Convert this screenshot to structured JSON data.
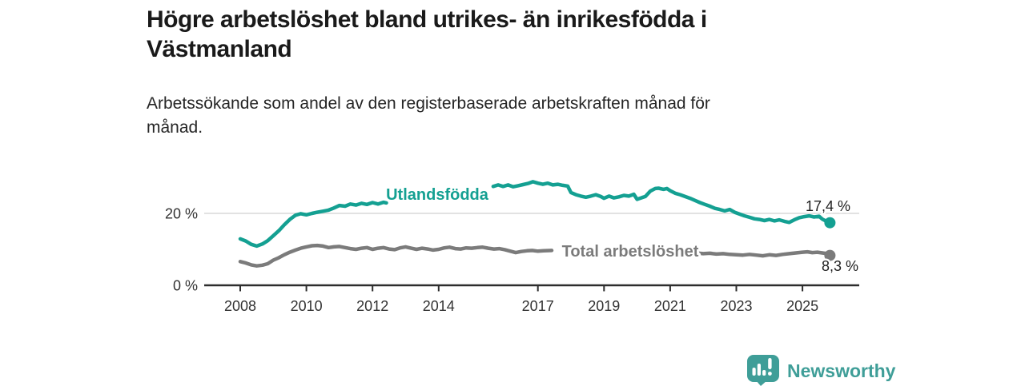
{
  "header": {
    "title_line1": "Högre arbetslöshet bland utrikes- än inrikesfödda i",
    "title_line2": "Västmanland",
    "subtitle_line1": "Arbetssökande som andel av den registerbaserade arbetskraften månad för",
    "subtitle_line2": "månad."
  },
  "chart_data": {
    "type": "line",
    "title": "Högre arbetslöshet bland utrikes- än inrikesfödda i Västmanland",
    "subtitle": "Arbetssökande som andel av den registerbaserade arbetskraften månad för månad.",
    "unit": "%",
    "grid": "horizontal-20-only",
    "legend_position": "inline-on-line",
    "x_axis": {
      "range_years": [
        2006.7,
        2026.7
      ],
      "ticks": [
        {
          "year": 2008,
          "label": "2008"
        },
        {
          "year": 2010,
          "label": "2010"
        },
        {
          "year": 2012,
          "label": "2012"
        },
        {
          "year": 2014,
          "label": "2014"
        },
        {
          "year": 2017,
          "label": "2017"
        },
        {
          "year": 2019,
          "label": "2019"
        },
        {
          "year": 2021,
          "label": "2021"
        },
        {
          "year": 2023,
          "label": "2023"
        },
        {
          "year": 2025,
          "label": "2025"
        }
      ]
    },
    "y_axis": {
      "range": [
        0,
        30
      ],
      "ticks": [
        {
          "value": 0,
          "label": "0 %"
        },
        {
          "value": 20,
          "label": "20 %"
        }
      ]
    },
    "series": [
      {
        "id": "utlandsfodda",
        "name": "Utlandsfödda",
        "color": "#14a092",
        "end_value": 17.4,
        "end_label": "17,4 %",
        "segments": [
          [
            [
              2008.0,
              12.9
            ],
            [
              2008.17,
              12.3
            ],
            [
              2008.33,
              11.4
            ],
            [
              2008.5,
              10.9
            ],
            [
              2008.67,
              11.5
            ],
            [
              2008.83,
              12.4
            ],
            [
              2009.0,
              13.8
            ],
            [
              2009.17,
              15.2
            ],
            [
              2009.33,
              16.8
            ],
            [
              2009.5,
              18.3
            ],
            [
              2009.67,
              19.5
            ],
            [
              2009.83,
              19.9
            ],
            [
              2010.0,
              19.6
            ],
            [
              2010.17,
              20.0
            ],
            [
              2010.33,
              20.3
            ],
            [
              2010.5,
              20.6
            ],
            [
              2010.67,
              20.9
            ],
            [
              2010.83,
              21.5
            ],
            [
              2011.0,
              22.2
            ],
            [
              2011.17,
              22.0
            ],
            [
              2011.33,
              22.6
            ],
            [
              2011.5,
              22.3
            ],
            [
              2011.67,
              22.8
            ],
            [
              2011.83,
              22.5
            ],
            [
              2012.0,
              23.0
            ],
            [
              2012.17,
              22.6
            ],
            [
              2012.33,
              23.1
            ],
            [
              2012.42,
              22.9
            ]
          ],
          [
            [
              2015.65,
              27.5
            ],
            [
              2015.8,
              27.9
            ],
            [
              2015.95,
              27.5
            ],
            [
              2016.1,
              27.9
            ],
            [
              2016.25,
              27.4
            ],
            [
              2016.4,
              27.7
            ],
            [
              2016.55,
              28.0
            ],
            [
              2016.7,
              28.3
            ],
            [
              2016.85,
              28.8
            ],
            [
              2017.0,
              28.4
            ],
            [
              2017.15,
              28.1
            ],
            [
              2017.3,
              28.4
            ],
            [
              2017.45,
              27.9
            ],
            [
              2017.6,
              28.1
            ],
            [
              2017.75,
              27.8
            ],
            [
              2017.9,
              27.6
            ],
            [
              2018.0,
              25.8
            ],
            [
              2018.15,
              25.2
            ],
            [
              2018.3,
              24.8
            ],
            [
              2018.45,
              24.5
            ],
            [
              2018.6,
              24.8
            ],
            [
              2018.75,
              25.2
            ],
            [
              2018.9,
              24.7
            ],
            [
              2019.0,
              24.2
            ],
            [
              2019.15,
              24.8
            ],
            [
              2019.3,
              24.3
            ],
            [
              2019.45,
              24.6
            ],
            [
              2019.6,
              25.0
            ],
            [
              2019.75,
              24.8
            ],
            [
              2019.9,
              25.3
            ],
            [
              2020.0,
              23.9
            ],
            [
              2020.15,
              24.4
            ],
            [
              2020.25,
              24.7
            ],
            [
              2020.4,
              26.2
            ],
            [
              2020.55,
              26.9
            ],
            [
              2020.65,
              27.0
            ],
            [
              2020.8,
              26.7
            ],
            [
              2020.9,
              26.9
            ],
            [
              2021.0,
              26.3
            ],
            [
              2021.15,
              25.6
            ],
            [
              2021.3,
              25.2
            ],
            [
              2021.45,
              24.7
            ],
            [
              2021.6,
              24.2
            ],
            [
              2021.75,
              23.6
            ],
            [
              2021.9,
              23.0
            ],
            [
              2022.05,
              22.5
            ],
            [
              2022.2,
              22.0
            ],
            [
              2022.35,
              21.4
            ],
            [
              2022.5,
              21.1
            ],
            [
              2022.65,
              20.7
            ],
            [
              2022.8,
              21.1
            ],
            [
              2022.95,
              20.3
            ],
            [
              2023.1,
              19.8
            ],
            [
              2023.25,
              19.3
            ],
            [
              2023.4,
              18.9
            ],
            [
              2023.55,
              18.5
            ],
            [
              2023.7,
              18.3
            ],
            [
              2023.85,
              18.0
            ],
            [
              2024.0,
              18.3
            ],
            [
              2024.15,
              17.9
            ],
            [
              2024.3,
              18.2
            ],
            [
              2024.45,
              17.8
            ],
            [
              2024.6,
              17.5
            ],
            [
              2024.75,
              18.2
            ],
            [
              2024.9,
              18.8
            ],
            [
              2025.05,
              19.1
            ],
            [
              2025.2,
              19.3
            ],
            [
              2025.35,
              19.0
            ],
            [
              2025.5,
              19.2
            ],
            [
              2025.6,
              18.4
            ],
            [
              2025.7,
              17.9
            ],
            [
              2025.83,
              17.4
            ]
          ]
        ]
      },
      {
        "id": "total-arbetsloshet",
        "name": "Total arbetslöshet",
        "color": "#7b7b7b",
        "end_value": 8.3,
        "end_label": "8,3 %",
        "segments": [
          [
            [
              2008.0,
              6.6
            ],
            [
              2008.17,
              6.2
            ],
            [
              2008.33,
              5.7
            ],
            [
              2008.5,
              5.4
            ],
            [
              2008.67,
              5.6
            ],
            [
              2008.83,
              6.0
            ],
            [
              2009.0,
              7.0
            ],
            [
              2009.17,
              7.7
            ],
            [
              2009.33,
              8.5
            ],
            [
              2009.5,
              9.2
            ],
            [
              2009.67,
              9.8
            ],
            [
              2009.83,
              10.3
            ],
            [
              2010.0,
              10.7
            ],
            [
              2010.17,
              11.0
            ],
            [
              2010.33,
              11.1
            ],
            [
              2010.5,
              10.9
            ],
            [
              2010.67,
              10.5
            ],
            [
              2010.83,
              10.7
            ],
            [
              2011.0,
              10.8
            ],
            [
              2011.17,
              10.5
            ],
            [
              2011.33,
              10.2
            ],
            [
              2011.5,
              10.0
            ],
            [
              2011.67,
              10.3
            ],
            [
              2011.83,
              10.5
            ],
            [
              2012.0,
              10.0
            ],
            [
              2012.17,
              10.3
            ],
            [
              2012.33,
              10.5
            ],
            [
              2012.5,
              10.1
            ],
            [
              2012.67,
              9.9
            ],
            [
              2012.83,
              10.4
            ],
            [
              2013.0,
              10.7
            ],
            [
              2013.17,
              10.3
            ],
            [
              2013.33,
              10.0
            ],
            [
              2013.5,
              10.3
            ],
            [
              2013.67,
              10.1
            ],
            [
              2013.83,
              9.8
            ],
            [
              2014.0,
              10.0
            ],
            [
              2014.17,
              10.4
            ],
            [
              2014.33,
              10.6
            ],
            [
              2014.5,
              10.2
            ],
            [
              2014.67,
              10.1
            ],
            [
              2014.83,
              10.4
            ],
            [
              2015.0,
              10.3
            ],
            [
              2015.17,
              10.5
            ],
            [
              2015.33,
              10.6
            ],
            [
              2015.5,
              10.3
            ],
            [
              2015.67,
              10.1
            ],
            [
              2015.83,
              10.2
            ],
            [
              2016.0,
              9.9
            ],
            [
              2016.17,
              9.5
            ],
            [
              2016.33,
              9.1
            ],
            [
              2016.5,
              9.4
            ],
            [
              2016.67,
              9.6
            ],
            [
              2016.83,
              9.7
            ],
            [
              2017.0,
              9.5
            ],
            [
              2017.17,
              9.6
            ],
            [
              2017.42,
              9.7
            ]
          ],
          [
            [
              2021.87,
              8.9
            ],
            [
              2022.0,
              8.8
            ],
            [
              2022.2,
              8.9
            ],
            [
              2022.4,
              8.7
            ],
            [
              2022.6,
              8.8
            ],
            [
              2022.8,
              8.6
            ],
            [
              2023.0,
              8.5
            ],
            [
              2023.2,
              8.4
            ],
            [
              2023.4,
              8.6
            ],
            [
              2023.6,
              8.4
            ],
            [
              2023.8,
              8.2
            ],
            [
              2024.0,
              8.5
            ],
            [
              2024.2,
              8.3
            ],
            [
              2024.4,
              8.6
            ],
            [
              2024.6,
              8.8
            ],
            [
              2024.8,
              9.0
            ],
            [
              2025.0,
              9.2
            ],
            [
              2025.15,
              9.3
            ],
            [
              2025.3,
              9.1
            ],
            [
              2025.45,
              9.2
            ],
            [
              2025.6,
              9.0
            ],
            [
              2025.75,
              8.8
            ],
            [
              2025.83,
              8.3
            ]
          ]
        ]
      }
    ]
  },
  "branding": {
    "logo_icon": "bar-chart-speech-bubble-icon",
    "logo_text": "Newsworthy",
    "brand_color": "#3f9e98"
  }
}
